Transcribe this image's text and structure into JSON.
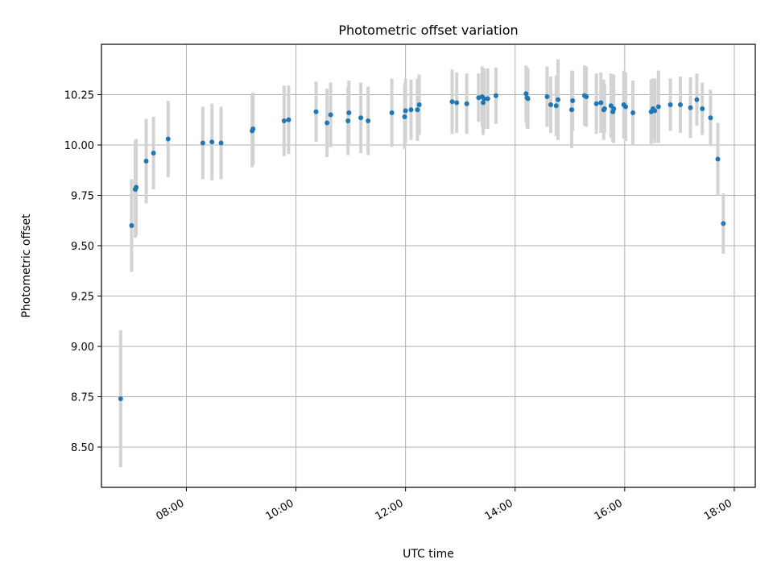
{
  "chart_data": {
    "type": "scatter",
    "title": "Photometric offset variation",
    "xlabel": "UTC time",
    "ylabel": "Photometric offset",
    "x_tick_labels": [
      "08:00",
      "10:00",
      "12:00",
      "14:00",
      "16:00",
      "18:00"
    ],
    "y_tick_labels": [
      "8.50",
      "8.75",
      "9.00",
      "9.25",
      "9.50",
      "9.75",
      "10.00",
      "10.25"
    ],
    "xlim": [
      "06:27",
      "18:23"
    ],
    "ylim": [
      8.3,
      10.5
    ],
    "grid": true,
    "colors": {
      "point": "#1f77b4",
      "errorbar": "#d3d3d3",
      "grid": "#b0b0b0"
    },
    "series": [
      {
        "x": [
          "06:48",
          "07:00",
          "07:04",
          "07:05",
          "07:16",
          "07:24",
          "07:40",
          "08:18",
          "08:28",
          "08:38",
          "09:12",
          "09:13",
          "09:47",
          "09:52",
          "10:22",
          "10:34",
          "10:38",
          "10:57",
          "10:58",
          "11:11",
          "11:19",
          "11:45",
          "11:59",
          "12:00",
          "12:06",
          "12:13",
          "12:15",
          "12:51",
          "12:56",
          "13:07",
          "13:20",
          "13:24",
          "13:25",
          "13:26",
          "13:30",
          "13:39",
          "14:12",
          "14:13",
          "14:14",
          "14:35",
          "14:39",
          "14:45",
          "14:47",
          "15:02",
          "15:03",
          "15:16",
          "15:18",
          "15:29",
          "15:34",
          "15:37",
          "15:38",
          "15:45",
          "15:47",
          "15:48",
          "15:59",
          "16:01",
          "16:09",
          "16:29",
          "16:31",
          "16:33",
          "16:37",
          "16:50",
          "17:01",
          "17:12",
          "17:19",
          "17:25",
          "17:34",
          "17:42",
          "17:48"
        ],
        "y": [
          8.74,
          9.6,
          9.78,
          9.79,
          9.92,
          9.96,
          10.03,
          10.01,
          10.015,
          10.01,
          10.07,
          10.08,
          10.12,
          10.125,
          10.165,
          10.11,
          10.15,
          10.12,
          10.16,
          10.135,
          10.12,
          10.16,
          10.14,
          10.17,
          10.175,
          10.175,
          10.2,
          10.215,
          10.21,
          10.205,
          10.235,
          10.24,
          10.21,
          10.23,
          10.23,
          10.245,
          10.255,
          10.235,
          10.23,
          10.24,
          10.2,
          10.195,
          10.225,
          10.175,
          10.22,
          10.245,
          10.24,
          10.205,
          10.21,
          10.175,
          10.18,
          10.195,
          10.165,
          10.18,
          10.2,
          10.19,
          10.16,
          10.165,
          10.18,
          10.17,
          10.19,
          10.2,
          10.2,
          10.185,
          10.225,
          10.18,
          10.135,
          9.93,
          9.61
        ],
        "yerr": [
          0.34,
          0.23,
          0.24,
          0.24,
          0.21,
          0.18,
          0.19,
          0.18,
          0.19,
          0.18,
          0.18,
          0.18,
          0.175,
          0.17,
          0.15,
          0.17,
          0.16,
          0.17,
          0.16,
          0.175,
          0.17,
          0.17,
          0.16,
          0.16,
          0.15,
          0.155,
          0.15,
          0.16,
          0.15,
          0.15,
          0.12,
          0.15,
          0.16,
          0.15,
          0.15,
          0.14,
          0.14,
          0.15,
          0.15,
          0.15,
          0.14,
          0.15,
          0.2,
          0.19,
          0.15,
          0.15,
          0.15,
          0.15,
          0.15,
          0.15,
          0.12,
          0.16,
          0.15,
          0.17,
          0.17,
          0.17,
          0.16,
          0.16,
          0.15,
          0.16,
          0.18,
          0.13,
          0.14,
          0.15,
          0.13,
          0.13,
          0.14,
          0.18,
          0.15
        ]
      }
    ]
  }
}
